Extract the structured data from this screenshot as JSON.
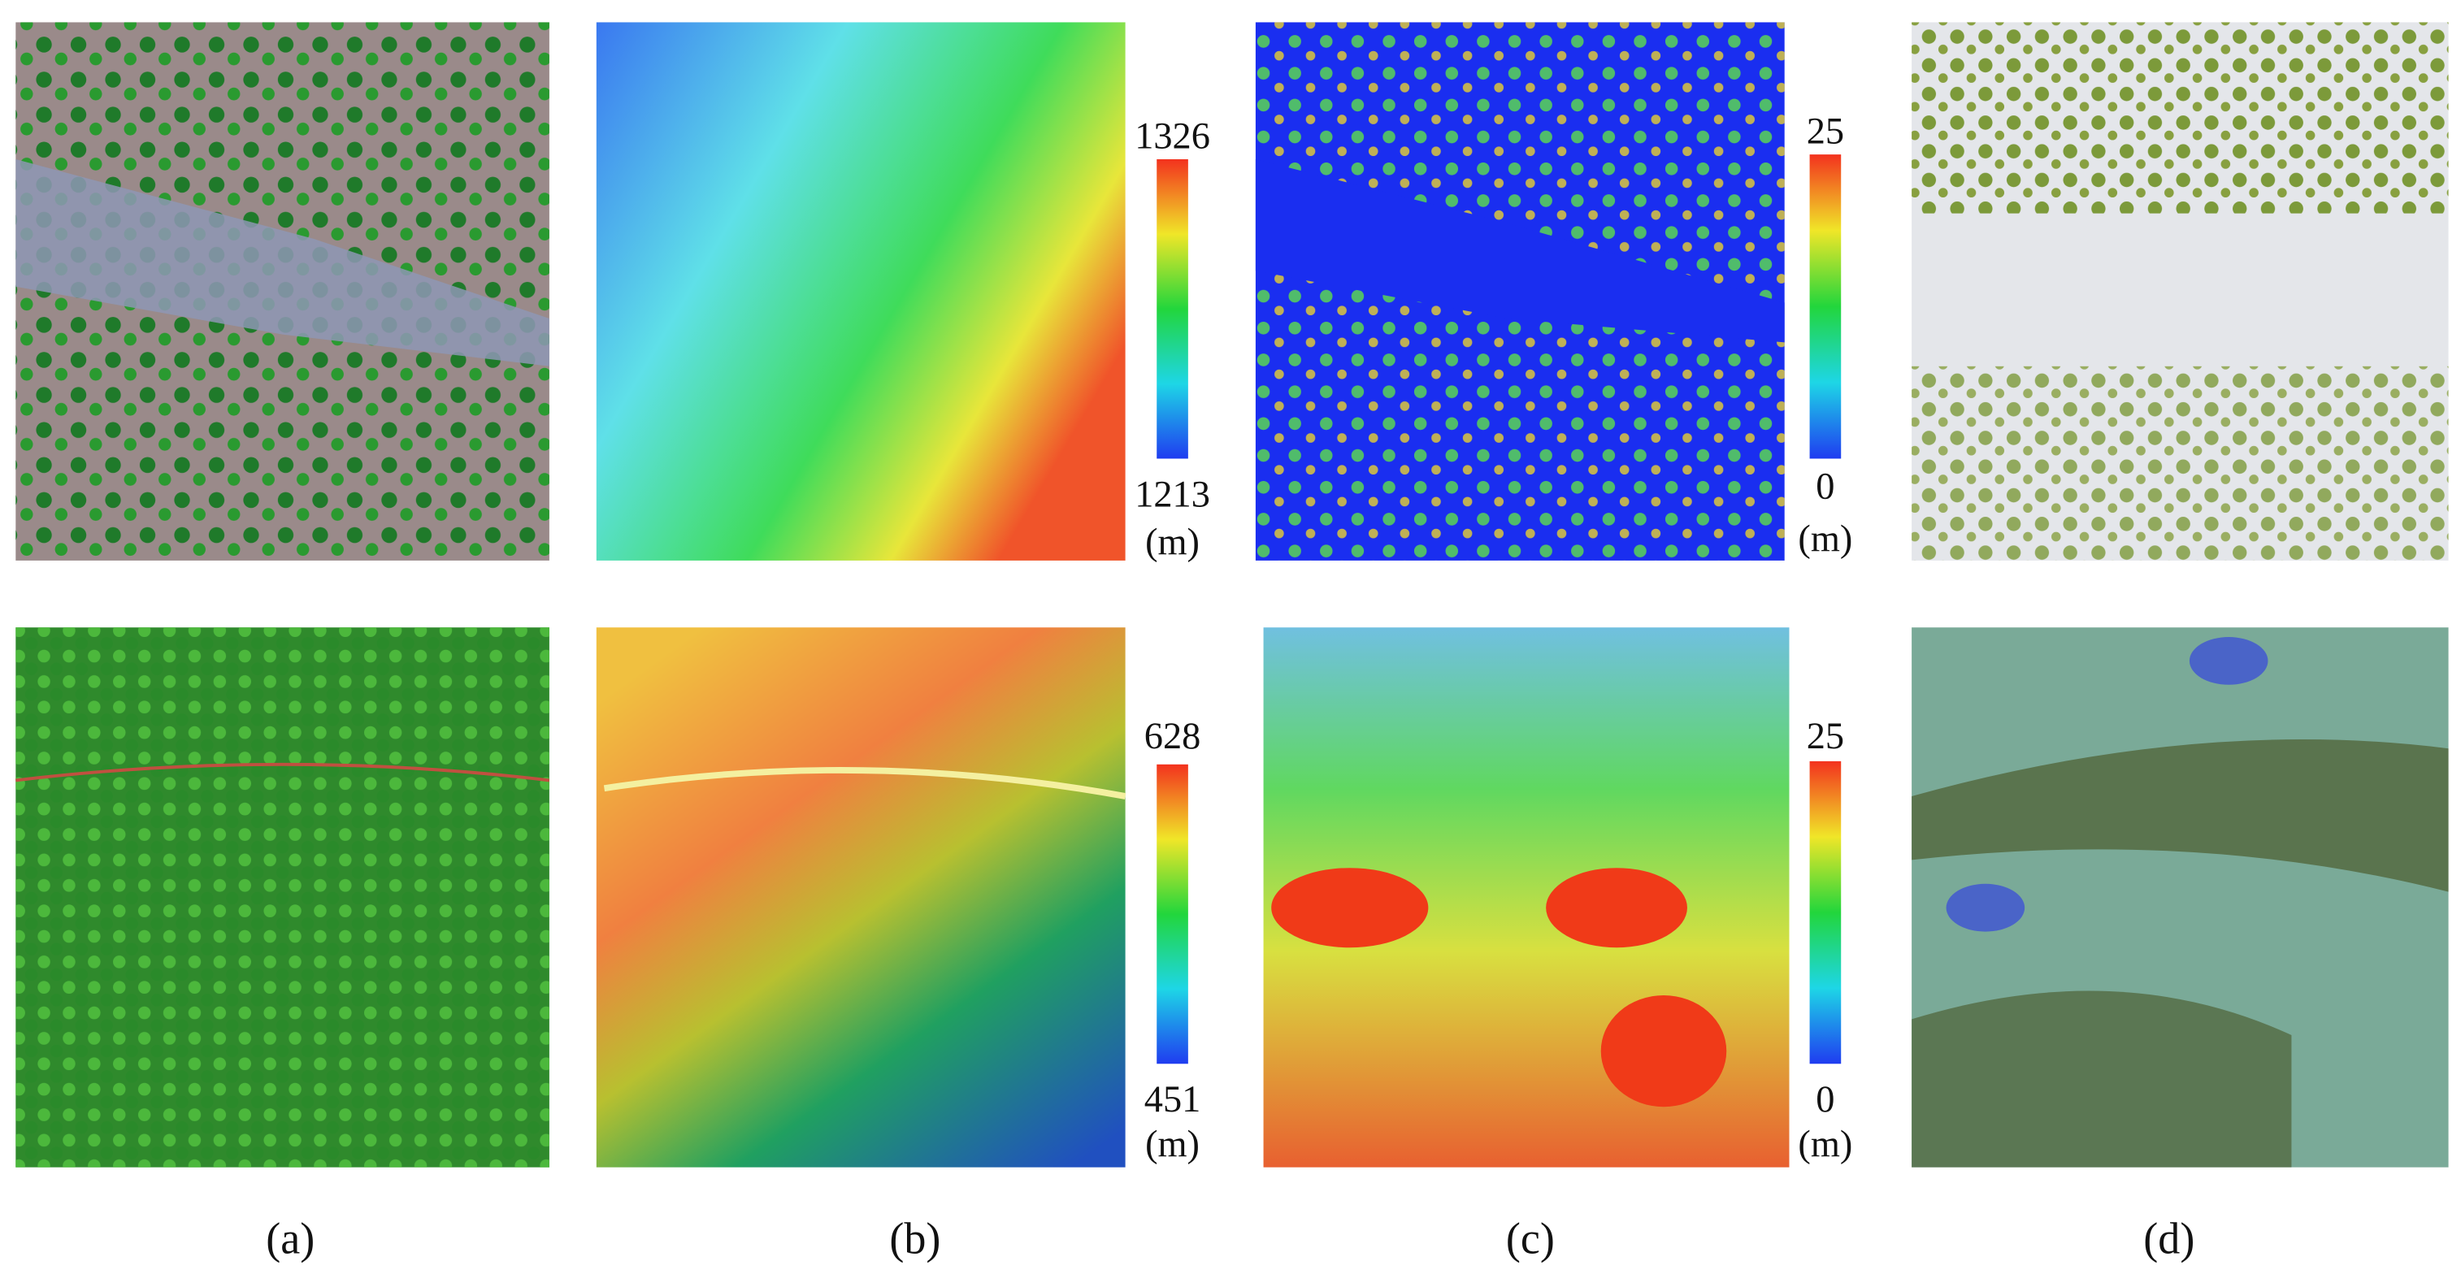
{
  "panels": [
    {
      "label": "(a)"
    },
    {
      "label": "(b)"
    },
    {
      "label": "(c)"
    },
    {
      "label": "(d)"
    }
  ],
  "colorbars": [
    {
      "max": "1326",
      "min": "1213",
      "unit": "(m)"
    },
    {
      "max": "25",
      "min": "0",
      "unit": "(m)"
    },
    {
      "max": "628",
      "min": "451",
      "unit": "(m)"
    },
    {
      "max": "25",
      "min": "0",
      "unit": "(m)"
    }
  ]
}
